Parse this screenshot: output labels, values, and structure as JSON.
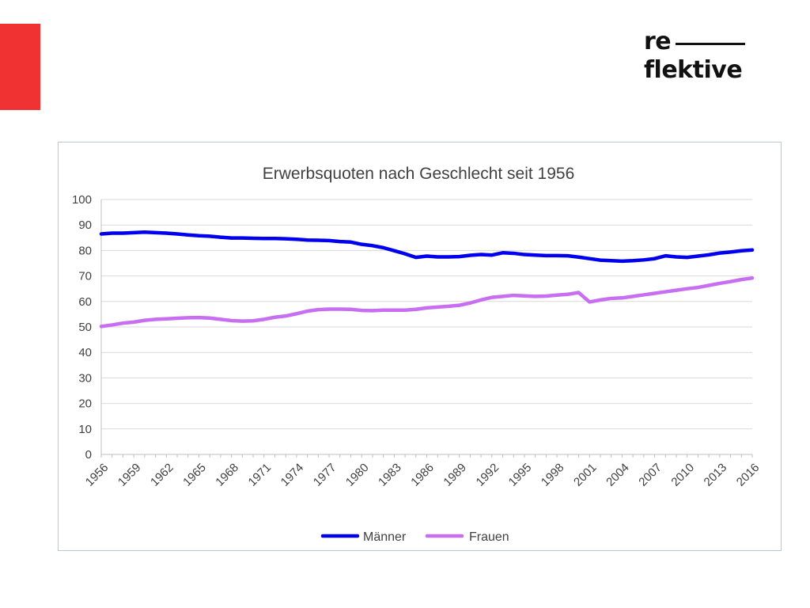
{
  "logo": {
    "line1": "re",
    "line2": "flektive"
  },
  "colors": {
    "accent": "#f03232",
    "maenner": "#0000ee",
    "frauen": "#c86ef0",
    "grid": "#d9d9d9"
  },
  "chart_data": {
    "type": "line",
    "title": "Erwerbsquoten nach Geschlecht seit 1956",
    "xlabel": "",
    "ylabel": "",
    "ylim": [
      0,
      100
    ],
    "yticks": [
      "0",
      "10",
      "20",
      "30",
      "40",
      "50",
      "60",
      "70",
      "80",
      "90",
      "100"
    ],
    "xticks": [
      "1956",
      "1959",
      "1962",
      "1965",
      "1968",
      "1971",
      "1974",
      "1977",
      "1980",
      "1983",
      "1986",
      "1989",
      "1992",
      "1995",
      "1998",
      "2001",
      "2004",
      "2007",
      "2010",
      "2013",
      "2016"
    ],
    "grid": true,
    "legend": "bottom",
    "x": [
      1956,
      1957,
      1958,
      1959,
      1960,
      1961,
      1962,
      1963,
      1964,
      1965,
      1966,
      1967,
      1968,
      1969,
      1970,
      1971,
      1972,
      1973,
      1974,
      1975,
      1976,
      1977,
      1978,
      1979,
      1980,
      1981,
      1982,
      1983,
      1984,
      1985,
      1986,
      1987,
      1988,
      1989,
      1990,
      1991,
      1992,
      1993,
      1994,
      1995,
      1996,
      1997,
      1998,
      1999,
      2000,
      2001,
      2002,
      2003,
      2004,
      2005,
      2006,
      2007,
      2008,
      2009,
      2010,
      2011,
      2012,
      2013,
      2014,
      2015,
      2016
    ],
    "series": [
      {
        "name": "Männer",
        "color": "#0000ee",
        "values": [
          86.5,
          86.8,
          86.8,
          87.0,
          87.2,
          87.0,
          86.8,
          86.5,
          86.1,
          85.8,
          85.6,
          85.2,
          84.9,
          84.9,
          84.8,
          84.7,
          84.7,
          84.6,
          84.4,
          84.1,
          84.0,
          83.9,
          83.5,
          83.3,
          82.4,
          81.9,
          81.1,
          79.9,
          78.7,
          77.3,
          77.8,
          77.5,
          77.5,
          77.6,
          78.1,
          78.4,
          78.2,
          79.1,
          78.9,
          78.4,
          78.2,
          78.0,
          78.0,
          77.9,
          77.4,
          76.8,
          76.2,
          76.0,
          75.8,
          76.0,
          76.3,
          76.8,
          77.9,
          77.5,
          77.3,
          77.8,
          78.3,
          79.0,
          79.4,
          79.9,
          80.2
        ]
      },
      {
        "name": "Frauen",
        "color": "#c86ef0",
        "values": [
          50.2,
          50.8,
          51.5,
          51.9,
          52.6,
          53.0,
          53.2,
          53.4,
          53.6,
          53.7,
          53.5,
          53.0,
          52.5,
          52.3,
          52.4,
          53.0,
          53.8,
          54.3,
          55.2,
          56.2,
          56.8,
          57.0,
          57.0,
          56.9,
          56.5,
          56.4,
          56.6,
          56.6,
          56.6,
          56.9,
          57.5,
          57.8,
          58.1,
          58.5,
          59.4,
          60.6,
          61.6,
          62.0,
          62.4,
          62.2,
          62.0,
          62.1,
          62.5,
          62.8,
          63.5,
          59.8,
          60.6,
          61.2,
          61.4,
          62.0,
          62.6,
          63.2,
          63.8,
          64.4,
          65.0,
          65.5,
          66.3,
          67.1,
          67.8,
          68.6,
          69.2
        ]
      }
    ]
  }
}
